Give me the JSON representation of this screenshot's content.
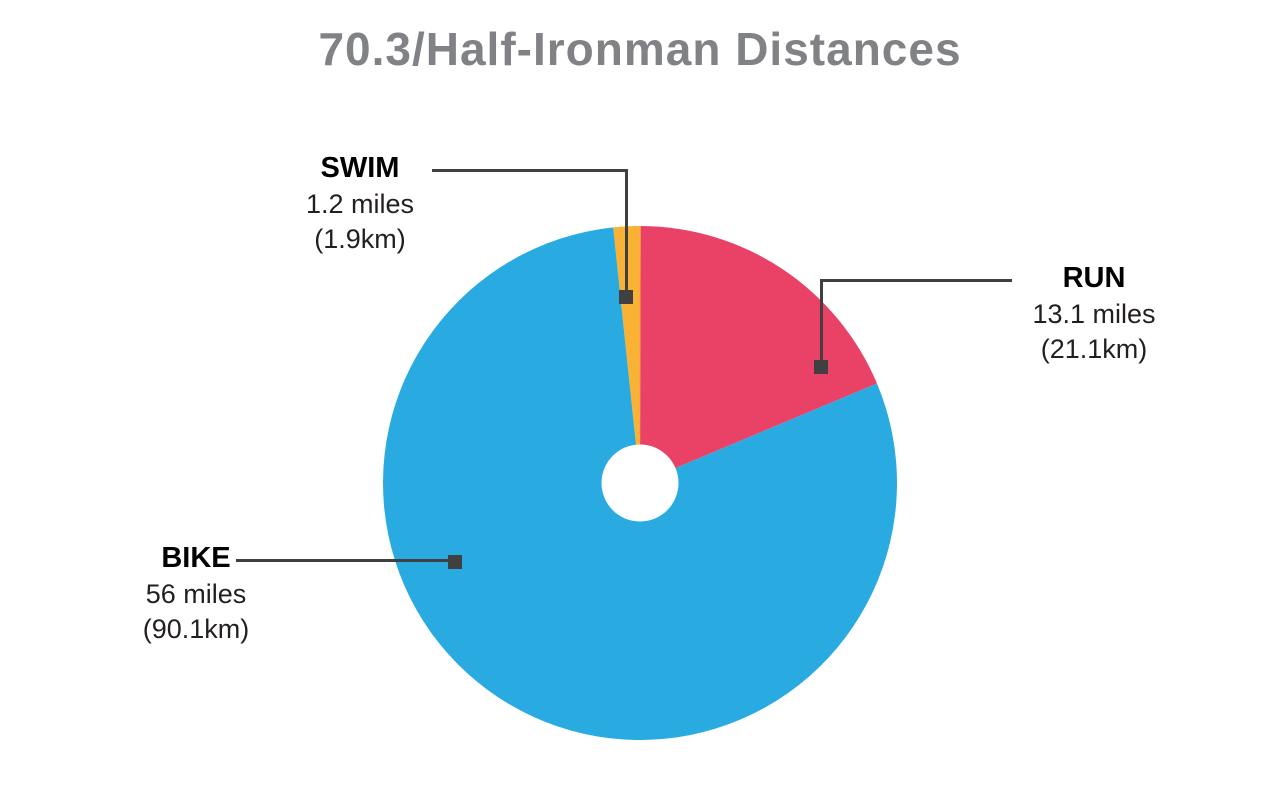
{
  "title": "70.3/Half-Ironman Distances",
  "colors": {
    "title_gray": "#808285",
    "callout_line": "#404041",
    "background": "#ffffff",
    "donut_hole": "#ffffff"
  },
  "chart_data": {
    "type": "pie",
    "title": "70.3/Half-Ironman Distances",
    "unit": "miles",
    "total_miles": 70.3,
    "start_angle_deg": -6,
    "donut_hole_ratio": 0.15,
    "legend_position": "callouts",
    "grid": false,
    "slices": [
      {
        "name": "SWIM",
        "value_miles": 1.2,
        "label_miles": "1.2 miles",
        "label_km": "(1.9km)",
        "percent": 1.7,
        "color": "#F9B233"
      },
      {
        "name": "RUN",
        "value_miles": 13.1,
        "label_miles": "13.1 miles",
        "label_km": "(21.1km)",
        "percent": 18.6,
        "color": "#E94266"
      },
      {
        "name": "BIKE",
        "value_miles": 56,
        "label_miles": "56 miles",
        "label_km": "(90.1km)",
        "percent": 79.7,
        "color": "#29ABE2"
      }
    ]
  }
}
